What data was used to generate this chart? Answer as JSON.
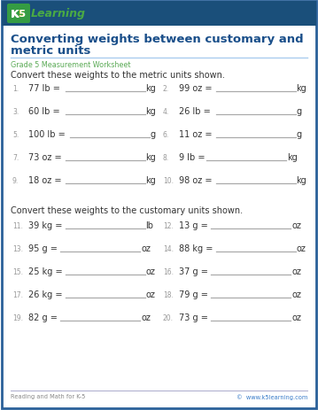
{
  "title_line1": "Converting weights between customary and",
  "title_line2": "metric units",
  "subtitle": "Grade 5 Measurement Worksheet",
  "section1_header": "Convert these weights to the metric units shown.",
  "section2_header": "Convert these weights to the customary units shown.",
  "footer_left": "Reading and Math for K-5",
  "footer_right": "©  www.k5learning.com",
  "section1_problems": [
    {
      "num": "1.",
      "problem": "77 lb = ",
      "unit": "kg"
    },
    {
      "num": "2.",
      "problem": "99 oz = ",
      "unit": "kg"
    },
    {
      "num": "3.",
      "problem": "60 lb = ",
      "unit": "kg"
    },
    {
      "num": "4.",
      "problem": "26 lb = ",
      "unit": "g"
    },
    {
      "num": "5.",
      "problem": "100 lb = ",
      "unit": "g"
    },
    {
      "num": "6.",
      "problem": "11 oz = ",
      "unit": "g"
    },
    {
      "num": "7.",
      "problem": "73 oz = ",
      "unit": "kg"
    },
    {
      "num": "8.",
      "problem": "9 lb =",
      "unit": "kg"
    },
    {
      "num": "9.",
      "problem": "18 oz = ",
      "unit": "kg"
    },
    {
      "num": "10.",
      "problem": "98 oz = ",
      "unit": "kg"
    }
  ],
  "section2_problems": [
    {
      "num": "11.",
      "problem": "39 kg = ",
      "unit": "lb"
    },
    {
      "num": "12.",
      "problem": "13 g = ",
      "unit": "oz"
    },
    {
      "num": "13.",
      "problem": "95 g = ",
      "unit": "oz"
    },
    {
      "num": "14.",
      "problem": "88 kg = ",
      "unit": "oz"
    },
    {
      "num": "15.",
      "problem": "25 kg = ",
      "unit": "oz"
    },
    {
      "num": "16.",
      "problem": "37 g = ",
      "unit": "oz"
    },
    {
      "num": "17.",
      "problem": "26 kg = ",
      "unit": "oz"
    },
    {
      "num": "18.",
      "problem": "79 g = ",
      "unit": "oz"
    },
    {
      "num": "19.",
      "problem": "82 g = ",
      "unit": "oz"
    },
    {
      "num": "20.",
      "problem": "73 g = ",
      "unit": "oz"
    }
  ],
  "border_color": "#2a6099",
  "title_color": "#1a4f8a",
  "subtitle_color": "#5aaa55",
  "text_color": "#333333",
  "num_color": "#999999",
  "footer_color": "#888888",
  "footer_link_color": "#3a7cc9",
  "line_color": "#aaaaaa",
  "bg_color": "#ffffff",
  "outer_border_color": "#2a6099"
}
